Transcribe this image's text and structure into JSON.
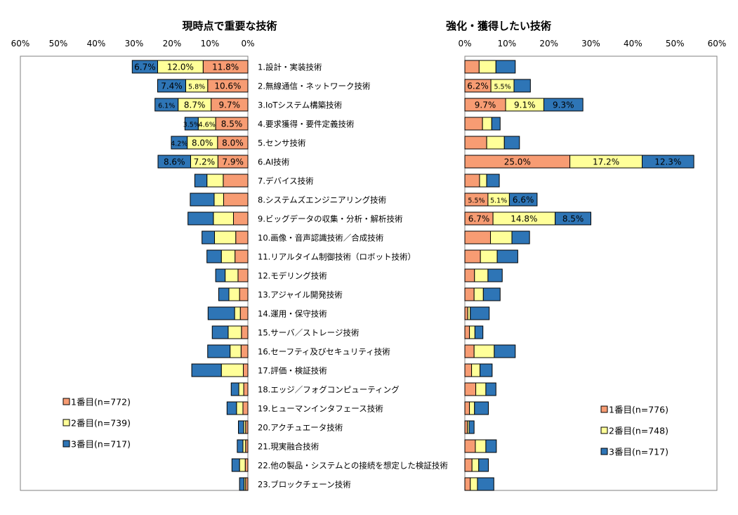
{
  "colors": {
    "first": "#F79C73",
    "second": "#FFFF99",
    "third": "#2E75B6",
    "border": "#000000",
    "frame": "#808080",
    "label_on_blue": "#FFFFFF"
  },
  "chart_data": {
    "type": "bar",
    "categories": [
      "1.設計・実装技術",
      "2.無線通信・ネットワーク技術",
      "3.IoTシステム構築技術",
      "4.要求獲得・要件定義技術",
      "5.センサ技術",
      "6.AI技術",
      "7.デバイス技術",
      "8.システムズエンジニアリング技術",
      "9.ビッグデータの収集・分析・解析技術",
      "10.画像・音声認識技術／合成技術",
      "11.リアルタイム制御技術（ロボット技術）",
      "12.モデリング技術",
      "13.アジャイル開発技術",
      "14.運用・保守技術",
      "15.サーバ／ストレージ技術",
      "16.セーフティ及びセキュリティ技術",
      "17.評価・検証技術",
      "18.エッジ／フォグコンピューティング",
      "19.ヒューマンインタフェース技術",
      "20.アクチュエータ技術",
      "21.現実融合技術",
      "22.他の製品・システムとの接続を想定した検証技術",
      "23.ブロックチェーン技術"
    ],
    "panels": [
      {
        "title": "現時点で重要な技術",
        "direction": "reversed",
        "xlim": [
          0,
          60
        ],
        "ticks": [
          "60%",
          "50%",
          "40%",
          "30%",
          "20%",
          "10%",
          "0%"
        ],
        "series": [
          {
            "name": "1番目(n=772)",
            "values": [
              11.8,
              10.6,
              9.7,
              8.5,
              8.0,
              7.9,
              6.5,
              6.4,
              3.8,
              3.2,
              3.4,
              2.6,
              2.2,
              2.0,
              1.7,
              1.8,
              1.2,
              1.1,
              1.3,
              0.6,
              0.6,
              0.7,
              0.6
            ]
          },
          {
            "name": "2番目(n=739)",
            "values": [
              12.0,
              5.8,
              8.7,
              4.6,
              8.0,
              7.2,
              4.3,
              2.5,
              5.3,
              5.6,
              3.6,
              3.4,
              2.8,
              1.5,
              3.5,
              2.9,
              5.8,
              1.3,
              1.7,
              0.5,
              0.7,
              1.5,
              0.4
            ]
          },
          {
            "name": "3番目(n=717)",
            "values": [
              6.7,
              7.4,
              6.1,
              3.5,
              4.2,
              8.6,
              3.2,
              6.3,
              6.7,
              3.3,
              3.8,
              2.5,
              2.7,
              7.0,
              4.2,
              5.9,
              7.8,
              2.0,
              2.5,
              1.4,
              1.5,
              2.0,
              1.2
            ]
          }
        ],
        "labels": [
          [
            "11.8%",
            "12.0%",
            "6.7%"
          ],
          [
            "10.6%",
            "5.8%",
            "7.4%"
          ],
          [
            "9.7%",
            "8.7%",
            "6.1%"
          ],
          [
            "8.5%",
            "4.6%",
            "3.5%"
          ],
          [
            "8.0%",
            "8.0%",
            "4.2%"
          ],
          [
            "7.9%",
            "7.2%",
            "8.6%"
          ]
        ]
      },
      {
        "title": "強化・獲得したい技術",
        "direction": "normal",
        "xlim": [
          0,
          60
        ],
        "ticks": [
          "0%",
          "10%",
          "20%",
          "30%",
          "40%",
          "50%",
          "60%"
        ],
        "series": [
          {
            "name": "1番目(n=776)",
            "values": [
              3.4,
              6.2,
              9.7,
              4.2,
              5.2,
              25.0,
              3.5,
              5.5,
              6.7,
              6.1,
              3.7,
              2.3,
              2.2,
              0.7,
              1.1,
              2.2,
              1.6,
              2.6,
              1.1,
              0.6,
              2.5,
              1.7,
              1.3
            ]
          },
          {
            "name": "2番目(n=748)",
            "values": [
              4.0,
              5.5,
              9.1,
              2.2,
              4.2,
              17.2,
              1.7,
              5.1,
              14.8,
              5.1,
              4.0,
              3.2,
              2.2,
              0.6,
              1.3,
              4.8,
              2.0,
              2.4,
              1.2,
              0.4,
              2.5,
              1.6,
              1.7
            ]
          },
          {
            "name": "3番目(n=717)",
            "values": [
              4.6,
              3.9,
              9.3,
              2.0,
              3.6,
              12.3,
              3.0,
              6.6,
              8.5,
              4.2,
              4.9,
              3.4,
              4.0,
              4.5,
              1.9,
              5.0,
              2.9,
              2.4,
              3.3,
              1.2,
              2.5,
              2.3,
              3.9
            ]
          }
        ],
        "labels": [
          null,
          [
            "6.2%",
            "5.5%",
            null
          ],
          [
            "9.7%",
            "9.1%",
            "9.3%"
          ],
          null,
          null,
          [
            "25.0%",
            "17.2%",
            "12.3%"
          ],
          null,
          [
            "5.5%",
            "5.1%",
            "6.6%"
          ],
          [
            "6.7%",
            "14.8%",
            "8.5%"
          ]
        ]
      }
    ],
    "grid": false,
    "legend": {
      "left_panel": "bottom-left",
      "right_panel": "bottom-right"
    }
  }
}
